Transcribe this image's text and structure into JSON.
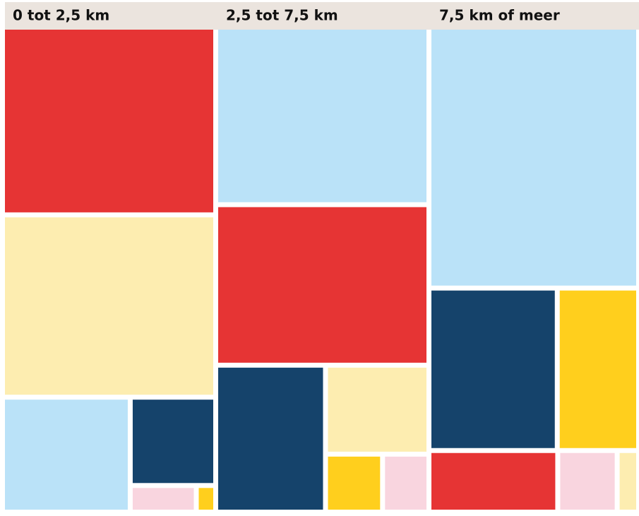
{
  "chart_data": [
    {
      "type": "treemap",
      "title": "0 tot 2,5 km",
      "values": [
        38.7,
        37.6,
        14.2,
        7.3,
        1.7,
        0.5
      ],
      "colors": [
        "#e63434",
        "#fdedb0",
        "#bae2f8",
        "#15436b",
        "#f9d5df",
        "#ffcf1d"
      ]
    },
    {
      "type": "treemap",
      "title": "2,5 tot 7,5 km",
      "values": [
        36.6,
        33.1,
        15.6,
        8.9,
        3.2,
        2.6
      ],
      "colors": [
        "#bae2f8",
        "#e63434",
        "#15436b",
        "#fdedb0",
        "#ffcf1d",
        "#f9d5df"
      ]
    },
    {
      "type": "treemap",
      "title": "7,5 km of meer",
      "values": [
        53.8,
        20.5,
        13.0,
        7.8,
        3.6,
        1.3
      ],
      "colors": [
        "#bae2f8",
        "#15436b",
        "#ffcf1d",
        "#e63434",
        "#f9d5df",
        "#fdedb0"
      ]
    }
  ]
}
